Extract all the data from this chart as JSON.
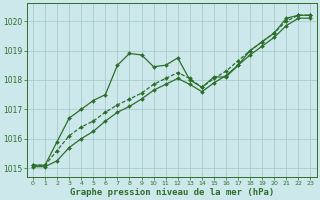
{
  "xlabel": "Graphe pression niveau de la mer (hPa)",
  "background_color": "#cce8ea",
  "grid_color": "#aacccc",
  "line_color": "#2d6e2d",
  "series1_y": [
    1015.1,
    1015.1,
    1015.9,
    1016.7,
    1017.0,
    1017.3,
    1017.5,
    1018.5,
    1018.9,
    1018.85,
    1018.45,
    1018.5,
    1018.75,
    1018.0,
    1017.75,
    1018.1,
    1018.1,
    1018.5,
    1019.0,
    1019.3,
    1019.6,
    1020.1,
    1020.2,
    1020.2
  ],
  "series2_y": [
    1015.1,
    1015.1,
    1015.6,
    1016.1,
    1016.4,
    1016.6,
    1016.9,
    1017.15,
    1017.35,
    1017.55,
    1017.85,
    1018.05,
    1018.25,
    1018.05,
    1017.75,
    1018.05,
    1018.3,
    1018.65,
    1019.0,
    1019.3,
    1019.6,
    1020.0,
    1020.2,
    1020.2
  ],
  "series3_y": [
    1015.05,
    1015.05,
    1015.25,
    1015.7,
    1016.0,
    1016.25,
    1016.6,
    1016.9,
    1017.1,
    1017.35,
    1017.65,
    1017.85,
    1018.05,
    1017.85,
    1017.6,
    1017.9,
    1018.15,
    1018.5,
    1018.85,
    1019.15,
    1019.45,
    1019.85,
    1020.1,
    1020.1
  ],
  "ylim": [
    1014.7,
    1020.6
  ],
  "yticks": [
    1015,
    1016,
    1017,
    1018,
    1019,
    1020
  ],
  "xticks": [
    0,
    1,
    2,
    3,
    4,
    5,
    6,
    7,
    8,
    9,
    10,
    11,
    12,
    13,
    14,
    15,
    16,
    17,
    18,
    19,
    20,
    21,
    22,
    23
  ]
}
